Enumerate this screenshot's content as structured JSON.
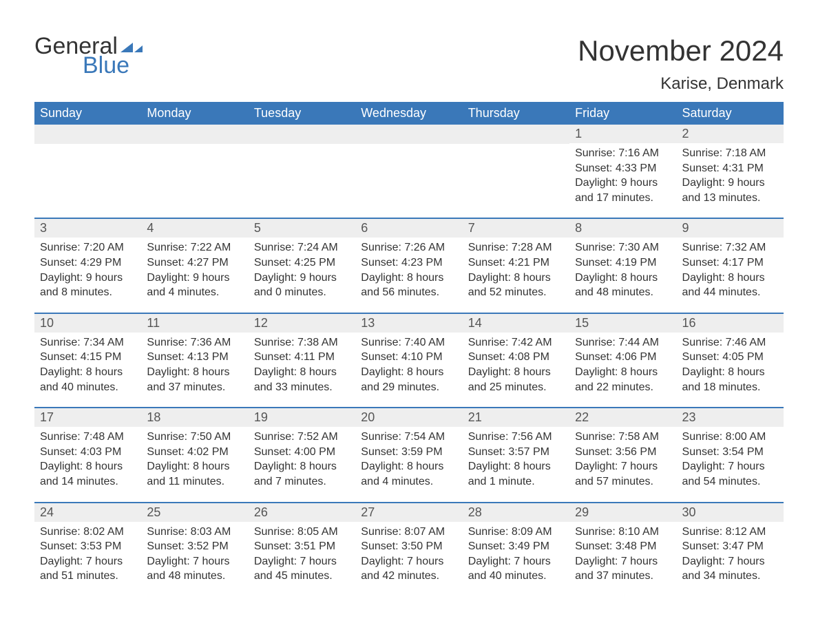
{
  "logo": {
    "word1": "General",
    "word2": "Blue",
    "shape_color": "#3a78b9"
  },
  "title": {
    "month": "November 2024",
    "location": "Karise, Denmark"
  },
  "colors": {
    "header_bg": "#3a78b9",
    "header_text": "#ffffff",
    "daynum_bg": "#eeeeee",
    "row_border": "#3a78b9",
    "body_text": "#333333",
    "page_bg": "#ffffff"
  },
  "day_headers": [
    "Sunday",
    "Monday",
    "Tuesday",
    "Wednesday",
    "Thursday",
    "Friday",
    "Saturday"
  ],
  "weeks": [
    [
      {
        "empty": true
      },
      {
        "empty": true
      },
      {
        "empty": true
      },
      {
        "empty": true
      },
      {
        "empty": true
      },
      {
        "n": "1",
        "sunrise": "Sunrise: 7:16 AM",
        "sunset": "Sunset: 4:33 PM",
        "dl1": "Daylight: 9 hours",
        "dl2": "and 17 minutes."
      },
      {
        "n": "2",
        "sunrise": "Sunrise: 7:18 AM",
        "sunset": "Sunset: 4:31 PM",
        "dl1": "Daylight: 9 hours",
        "dl2": "and 13 minutes."
      }
    ],
    [
      {
        "n": "3",
        "sunrise": "Sunrise: 7:20 AM",
        "sunset": "Sunset: 4:29 PM",
        "dl1": "Daylight: 9 hours",
        "dl2": "and 8 minutes."
      },
      {
        "n": "4",
        "sunrise": "Sunrise: 7:22 AM",
        "sunset": "Sunset: 4:27 PM",
        "dl1": "Daylight: 9 hours",
        "dl2": "and 4 minutes."
      },
      {
        "n": "5",
        "sunrise": "Sunrise: 7:24 AM",
        "sunset": "Sunset: 4:25 PM",
        "dl1": "Daylight: 9 hours",
        "dl2": "and 0 minutes."
      },
      {
        "n": "6",
        "sunrise": "Sunrise: 7:26 AM",
        "sunset": "Sunset: 4:23 PM",
        "dl1": "Daylight: 8 hours",
        "dl2": "and 56 minutes."
      },
      {
        "n": "7",
        "sunrise": "Sunrise: 7:28 AM",
        "sunset": "Sunset: 4:21 PM",
        "dl1": "Daylight: 8 hours",
        "dl2": "and 52 minutes."
      },
      {
        "n": "8",
        "sunrise": "Sunrise: 7:30 AM",
        "sunset": "Sunset: 4:19 PM",
        "dl1": "Daylight: 8 hours",
        "dl2": "and 48 minutes."
      },
      {
        "n": "9",
        "sunrise": "Sunrise: 7:32 AM",
        "sunset": "Sunset: 4:17 PM",
        "dl1": "Daylight: 8 hours",
        "dl2": "and 44 minutes."
      }
    ],
    [
      {
        "n": "10",
        "sunrise": "Sunrise: 7:34 AM",
        "sunset": "Sunset: 4:15 PM",
        "dl1": "Daylight: 8 hours",
        "dl2": "and 40 minutes."
      },
      {
        "n": "11",
        "sunrise": "Sunrise: 7:36 AM",
        "sunset": "Sunset: 4:13 PM",
        "dl1": "Daylight: 8 hours",
        "dl2": "and 37 minutes."
      },
      {
        "n": "12",
        "sunrise": "Sunrise: 7:38 AM",
        "sunset": "Sunset: 4:11 PM",
        "dl1": "Daylight: 8 hours",
        "dl2": "and 33 minutes."
      },
      {
        "n": "13",
        "sunrise": "Sunrise: 7:40 AM",
        "sunset": "Sunset: 4:10 PM",
        "dl1": "Daylight: 8 hours",
        "dl2": "and 29 minutes."
      },
      {
        "n": "14",
        "sunrise": "Sunrise: 7:42 AM",
        "sunset": "Sunset: 4:08 PM",
        "dl1": "Daylight: 8 hours",
        "dl2": "and 25 minutes."
      },
      {
        "n": "15",
        "sunrise": "Sunrise: 7:44 AM",
        "sunset": "Sunset: 4:06 PM",
        "dl1": "Daylight: 8 hours",
        "dl2": "and 22 minutes."
      },
      {
        "n": "16",
        "sunrise": "Sunrise: 7:46 AM",
        "sunset": "Sunset: 4:05 PM",
        "dl1": "Daylight: 8 hours",
        "dl2": "and 18 minutes."
      }
    ],
    [
      {
        "n": "17",
        "sunrise": "Sunrise: 7:48 AM",
        "sunset": "Sunset: 4:03 PM",
        "dl1": "Daylight: 8 hours",
        "dl2": "and 14 minutes."
      },
      {
        "n": "18",
        "sunrise": "Sunrise: 7:50 AM",
        "sunset": "Sunset: 4:02 PM",
        "dl1": "Daylight: 8 hours",
        "dl2": "and 11 minutes."
      },
      {
        "n": "19",
        "sunrise": "Sunrise: 7:52 AM",
        "sunset": "Sunset: 4:00 PM",
        "dl1": "Daylight: 8 hours",
        "dl2": "and 7 minutes."
      },
      {
        "n": "20",
        "sunrise": "Sunrise: 7:54 AM",
        "sunset": "Sunset: 3:59 PM",
        "dl1": "Daylight: 8 hours",
        "dl2": "and 4 minutes."
      },
      {
        "n": "21",
        "sunrise": "Sunrise: 7:56 AM",
        "sunset": "Sunset: 3:57 PM",
        "dl1": "Daylight: 8 hours",
        "dl2": "and 1 minute."
      },
      {
        "n": "22",
        "sunrise": "Sunrise: 7:58 AM",
        "sunset": "Sunset: 3:56 PM",
        "dl1": "Daylight: 7 hours",
        "dl2": "and 57 minutes."
      },
      {
        "n": "23",
        "sunrise": "Sunrise: 8:00 AM",
        "sunset": "Sunset: 3:54 PM",
        "dl1": "Daylight: 7 hours",
        "dl2": "and 54 minutes."
      }
    ],
    [
      {
        "n": "24",
        "sunrise": "Sunrise: 8:02 AM",
        "sunset": "Sunset: 3:53 PM",
        "dl1": "Daylight: 7 hours",
        "dl2": "and 51 minutes."
      },
      {
        "n": "25",
        "sunrise": "Sunrise: 8:03 AM",
        "sunset": "Sunset: 3:52 PM",
        "dl1": "Daylight: 7 hours",
        "dl2": "and 48 minutes."
      },
      {
        "n": "26",
        "sunrise": "Sunrise: 8:05 AM",
        "sunset": "Sunset: 3:51 PM",
        "dl1": "Daylight: 7 hours",
        "dl2": "and 45 minutes."
      },
      {
        "n": "27",
        "sunrise": "Sunrise: 8:07 AM",
        "sunset": "Sunset: 3:50 PM",
        "dl1": "Daylight: 7 hours",
        "dl2": "and 42 minutes."
      },
      {
        "n": "28",
        "sunrise": "Sunrise: 8:09 AM",
        "sunset": "Sunset: 3:49 PM",
        "dl1": "Daylight: 7 hours",
        "dl2": "and 40 minutes."
      },
      {
        "n": "29",
        "sunrise": "Sunrise: 8:10 AM",
        "sunset": "Sunset: 3:48 PM",
        "dl1": "Daylight: 7 hours",
        "dl2": "and 37 minutes."
      },
      {
        "n": "30",
        "sunrise": "Sunrise: 8:12 AM",
        "sunset": "Sunset: 3:47 PM",
        "dl1": "Daylight: 7 hours",
        "dl2": "and 34 minutes."
      }
    ]
  ]
}
